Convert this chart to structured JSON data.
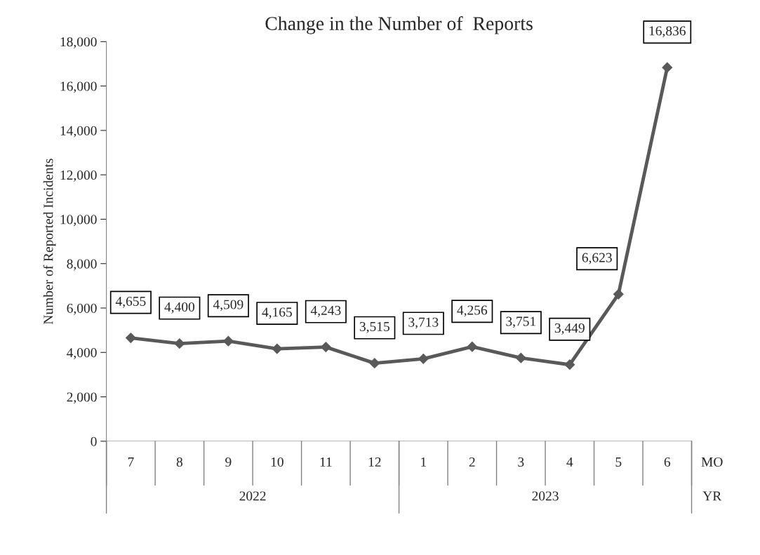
{
  "chart_data": {
    "type": "line",
    "title": "Change in the Number of  Reports",
    "ylabel": "Number of Reported Incidents",
    "categories": [
      "7",
      "8",
      "9",
      "10",
      "11",
      "12",
      "1",
      "2",
      "3",
      "4",
      "5",
      "6"
    ],
    "series": [
      {
        "color": "#595959",
        "values": [
          4655,
          4400,
          4509,
          4165,
          4243,
          3515,
          3713,
          4256,
          3751,
          3449,
          6623,
          16836
        ],
        "value_labels": [
          "4,655",
          "4,400",
          "4,509",
          "4,165",
          "4,243",
          "3,515",
          "3,713",
          "4,256",
          "3,751",
          "3,449",
          "6,623",
          "16,836"
        ]
      }
    ],
    "ylim": [
      0,
      18000
    ],
    "yticks": [
      {
        "value": 0,
        "label": "0"
      },
      {
        "value": 2000,
        "label": "2,000"
      },
      {
        "value": 4000,
        "label": "4,000"
      },
      {
        "value": 6000,
        "label": "6,000"
      },
      {
        "value": 8000,
        "label": "8,000"
      },
      {
        "value": 10000,
        "label": "10,000"
      },
      {
        "value": 12000,
        "label": "12,000"
      },
      {
        "value": 14000,
        "label": "14,000"
      },
      {
        "value": 16000,
        "label": "16,000"
      },
      {
        "value": 18000,
        "label": "18,000"
      }
    ],
    "annotations": [
      "2022",
      "2023",
      "MO",
      "YR"
    ],
    "marker": "diamond",
    "line_style": "solid",
    "grid": false
  }
}
